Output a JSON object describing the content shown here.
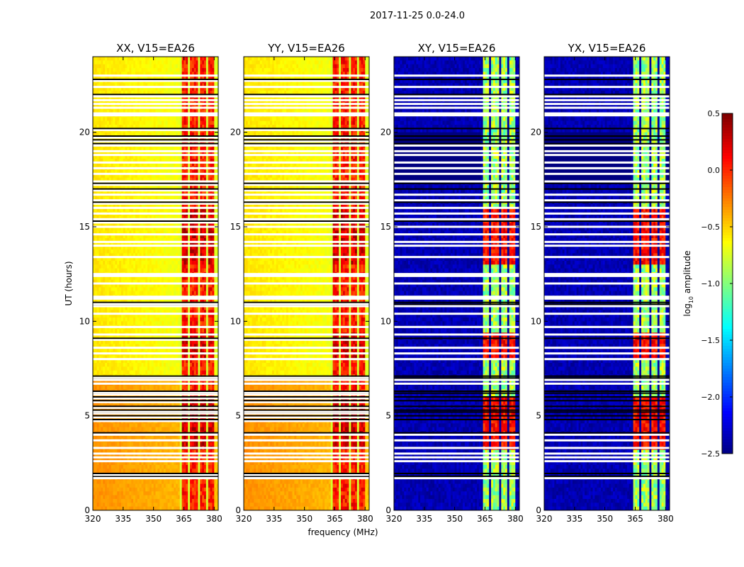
{
  "figure_title": "2017-11-25 0.0-24.0",
  "chart_data": [
    {
      "type": "heatmap",
      "title": "XX, V15=EA26",
      "xlabel": "",
      "ylabel": "UT (hours)",
      "xlim": [
        320,
        382
      ],
      "ylim": [
        0,
        24
      ],
      "xticks": [
        320,
        335,
        350,
        365,
        380
      ],
      "yticks": [
        0,
        5,
        10,
        15,
        20
      ],
      "band": "parallel"
    },
    {
      "type": "heatmap",
      "title": "YY, V15=EA26",
      "xlabel": "frequency (MHz)",
      "ylabel": "",
      "xlim": [
        320,
        382
      ],
      "ylim": [
        0,
        24
      ],
      "xticks": [
        320,
        335,
        350,
        365,
        380
      ],
      "yticks": [
        0,
        5,
        10,
        15,
        20
      ],
      "band": "parallel"
    },
    {
      "type": "heatmap",
      "title": "XY, V15=EA26",
      "xlabel": "",
      "ylabel": "",
      "xlim": [
        320,
        382
      ],
      "ylim": [
        0,
        24
      ],
      "xticks": [
        320,
        335,
        350,
        365,
        380
      ],
      "yticks": [
        0,
        5,
        10,
        15,
        20
      ],
      "band": "cross"
    },
    {
      "type": "heatmap",
      "title": "YX, V15=EA26",
      "xlabel": "",
      "ylabel": "",
      "xlim": [
        320,
        382
      ],
      "ylim": [
        0,
        24
      ],
      "xticks": [
        320,
        335,
        350,
        365,
        380
      ],
      "yticks": [
        0,
        5,
        10,
        15,
        20
      ],
      "band": "cross"
    }
  ],
  "colorbar": {
    "label_base": "log",
    "label_sub": "10",
    "label_rest": " amplitude",
    "min": -2.5,
    "max": 0.5,
    "ticks": [
      "0.5",
      "0.0",
      "−0.5",
      "−1.0",
      "−1.5",
      "−2.0",
      "−2.5"
    ],
    "tick_values": [
      0.5,
      0.0,
      -0.5,
      -1.0,
      -1.5,
      -2.0,
      -2.5
    ],
    "colormap": "jet"
  },
  "flags": {
    "white_rows_hours": [
      1.7,
      2.6,
      2.8,
      3.0,
      3.3,
      3.7,
      4.0,
      6.7,
      6.9,
      8.0,
      8.3,
      8.6,
      9.3,
      9.7,
      10.4,
      10.8,
      11.2,
      11.3,
      12.0,
      12.4,
      12.5,
      13.4,
      14.0,
      14.2,
      14.6,
      15.0,
      15.4,
      15.7,
      16.0,
      16.4,
      16.7,
      17.4,
      17.8,
      18.1,
      18.4,
      18.8,
      19.0,
      19.3,
      20.9,
      21.0,
      21.3,
      21.5,
      21.7,
      21.9,
      22.4,
      23.0
    ],
    "black_rows_hours": [
      1.8,
      1.95,
      4.1,
      4.8,
      5.0,
      5.2,
      5.3,
      5.5,
      5.8,
      6.0,
      6.2,
      6.3,
      7.0,
      7.1,
      9.1,
      10.9,
      11.0,
      15.3,
      16.3,
      17.0,
      17.3,
      19.4,
      19.6,
      19.8,
      20.2,
      22.0,
      22.8
    ],
    "dark_block_hours": [
      4.1,
      6.5
    ]
  }
}
